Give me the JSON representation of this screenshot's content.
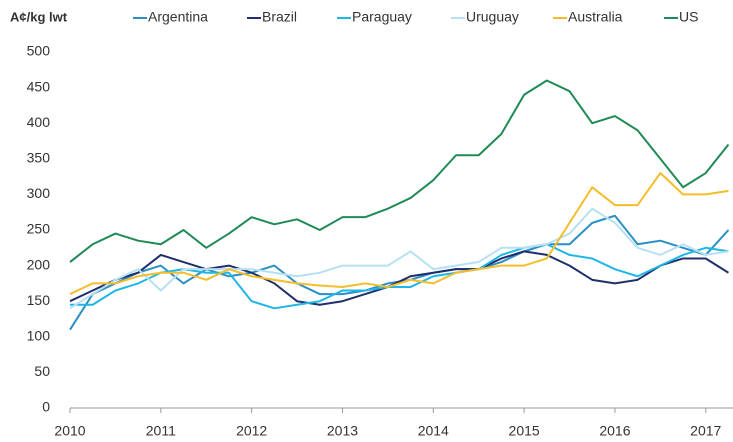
{
  "chart_data": {
    "type": "line",
    "y_axis_label": "A¢/kg lwt",
    "x": [
      2010,
      2010.25,
      2010.5,
      2010.75,
      2011,
      2011.25,
      2011.5,
      2011.75,
      2012,
      2012.25,
      2012.5,
      2012.75,
      2013,
      2013.25,
      2013.5,
      2013.75,
      2014,
      2014.25,
      2014.5,
      2014.75,
      2015,
      2015.25,
      2015.5,
      2015.75,
      2016,
      2016.25,
      2016.5,
      2016.75,
      2017,
      2017.25
    ],
    "series": [
      {
        "name": "Argentina",
        "color": "#2a8fc4",
        "values": [
          110,
          160,
          175,
          190,
          200,
          175,
          195,
          185,
          190,
          200,
          175,
          160,
          160,
          165,
          175,
          180,
          190,
          195,
          195,
          205,
          220,
          230,
          230,
          260,
          270,
          230,
          235,
          225,
          215,
          250
        ]
      },
      {
        "name": "Brazil",
        "color": "#1f2f6b",
        "values": [
          150,
          165,
          180,
          190,
          215,
          205,
          195,
          200,
          190,
          175,
          150,
          145,
          150,
          160,
          170,
          185,
          190,
          195,
          195,
          210,
          220,
          215,
          200,
          180,
          175,
          180,
          200,
          210,
          210,
          190
        ]
      },
      {
        "name": "Paraguay",
        "color": "#1fb6e8",
        "values": [
          145,
          145,
          165,
          175,
          190,
          195,
          190,
          190,
          150,
          140,
          145,
          150,
          165,
          165,
          170,
          170,
          185,
          190,
          195,
          215,
          225,
          230,
          215,
          210,
          195,
          185,
          200,
          215,
          225,
          220
        ]
      },
      {
        "name": "Uruguay",
        "color": "#b7e1f3",
        "values": [
          140,
          160,
          180,
          195,
          165,
          195,
          195,
          195,
          195,
          190,
          185,
          190,
          200,
          200,
          200,
          220,
          195,
          200,
          205,
          225,
          225,
          230,
          245,
          280,
          260,
          225,
          215,
          230,
          215,
          220
        ]
      },
      {
        "name": "Australia",
        "color": "#f5bd2a",
        "values": [
          160,
          175,
          175,
          185,
          190,
          190,
          180,
          195,
          185,
          180,
          175,
          172,
          170,
          175,
          170,
          180,
          175,
          190,
          195,
          200,
          200,
          210,
          260,
          310,
          285,
          285,
          330,
          300,
          300,
          305
        ]
      },
      {
        "name": "US",
        "color": "#1f8a55",
        "values": [
          205,
          230,
          245,
          235,
          230,
          250,
          225,
          245,
          268,
          258,
          265,
          250,
          268,
          268,
          280,
          295,
          320,
          355,
          355,
          385,
          440,
          460,
          445,
          400,
          410,
          390,
          350,
          310,
          330,
          370
        ]
      }
    ],
    "xlim": [
      2010,
      2017.3
    ],
    "xticks": [
      2010,
      2011,
      2012,
      2013,
      2014,
      2015,
      2016,
      2017
    ],
    "ylim": [
      0,
      500
    ],
    "yticks": [
      0,
      50,
      100,
      150,
      200,
      250,
      300,
      350,
      400,
      450,
      500
    ],
    "grid": false
  }
}
